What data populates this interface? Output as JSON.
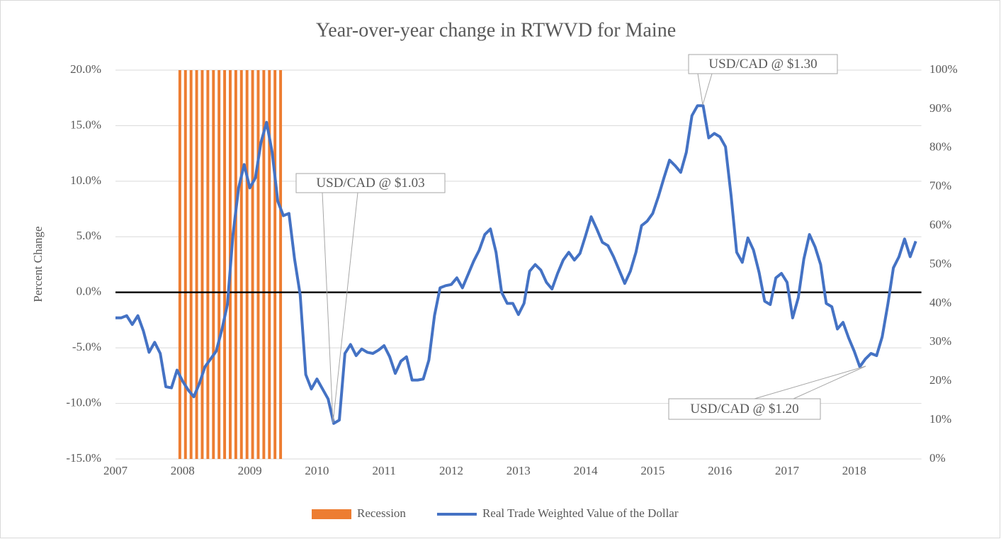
{
  "chart_data": {
    "type": "combo",
    "title": "Year-over-year change in RTWVD for Maine",
    "y_label": "Percent Change",
    "categories": [
      "2007",
      null,
      null,
      null,
      null,
      null,
      null,
      null,
      null,
      null,
      null,
      null,
      "2008",
      null,
      null,
      null,
      null,
      null,
      null,
      null,
      null,
      null,
      null,
      null,
      "2009",
      null,
      null,
      null,
      null,
      null,
      null,
      null,
      null,
      null,
      null,
      null,
      "2010",
      null,
      null,
      null,
      null,
      null,
      null,
      null,
      null,
      null,
      null,
      null,
      "2011",
      null,
      null,
      null,
      null,
      null,
      null,
      null,
      null,
      null,
      null,
      null,
      "2012",
      null,
      null,
      null,
      null,
      null,
      null,
      null,
      null,
      null,
      null,
      null,
      "2013",
      null,
      null,
      null,
      null,
      null,
      null,
      null,
      null,
      null,
      null,
      null,
      "2014",
      null,
      null,
      null,
      null,
      null,
      null,
      null,
      null,
      null,
      null,
      null,
      "2015",
      null,
      null,
      null,
      null,
      null,
      null,
      null,
      null,
      null,
      null,
      null,
      "2016",
      null,
      null,
      null,
      null,
      null,
      null,
      null,
      null,
      null,
      null,
      null,
      "2017",
      null,
      null,
      null,
      null,
      null,
      null,
      null,
      null,
      null,
      null,
      null,
      "2018",
      null,
      null,
      null,
      null,
      null,
      null,
      null,
      null,
      null,
      null,
      null
    ],
    "series": [
      {
        "name": "Recession",
        "type": "bar",
        "axis": "y2",
        "color": "#ed7d31",
        "values": [
          null,
          null,
          null,
          null,
          null,
          null,
          null,
          null,
          null,
          null,
          null,
          100,
          100,
          100,
          100,
          100,
          100,
          100,
          100,
          100,
          100,
          100,
          100,
          100,
          100,
          100,
          100,
          100,
          100,
          100,
          null,
          null,
          null,
          null,
          null,
          null,
          null,
          null,
          null,
          null,
          null,
          null,
          null,
          null,
          null,
          null,
          null,
          null,
          null,
          null,
          null,
          null,
          null,
          null,
          null,
          null,
          null,
          null,
          null,
          null,
          null,
          null,
          null,
          null,
          null,
          null,
          null,
          null,
          null,
          null,
          null,
          null,
          null,
          null,
          null,
          null,
          null,
          null,
          null,
          null,
          null,
          null,
          null,
          null,
          null,
          null,
          null,
          null,
          null,
          null,
          null,
          null,
          null,
          null,
          null,
          null,
          null,
          null,
          null,
          null,
          null,
          null,
          null,
          null,
          null,
          null,
          null,
          null,
          null,
          null,
          null,
          null,
          null,
          null,
          null,
          null,
          null,
          null,
          null,
          null,
          null,
          null,
          null,
          null,
          null,
          null,
          null,
          null,
          null,
          null,
          null,
          null,
          null,
          null,
          null,
          null,
          null,
          null,
          null,
          null,
          null,
          null,
          null,
          null
        ]
      },
      {
        "name": "Real Trade Weighted Value of the Dollar",
        "type": "line",
        "color": "#4472c4",
        "values": [
          -2.3,
          -2.3,
          -2.1,
          -2.9,
          -2.1,
          -3.5,
          -5.4,
          -4.5,
          -5.5,
          -8.5,
          -8.6,
          -7.0,
          -8.0,
          -8.8,
          -9.4,
          -8.2,
          -6.7,
          -6.0,
          -5.3,
          -3.4,
          -1.1,
          5.2,
          9.4,
          11.5,
          9.4,
          10.3,
          13.5,
          15.3,
          12.6,
          8.2,
          6.9,
          7.1,
          3.0,
          -0.2,
          -7.4,
          -8.7,
          -7.8,
          -8.7,
          -9.6,
          -11.8,
          -11.5,
          -5.5,
          -4.7,
          -5.7,
          -5.1,
          -5.4,
          -5.5,
          -5.2,
          -4.8,
          -5.8,
          -7.3,
          -6.2,
          -5.8,
          -7.9,
          -7.9,
          -7.8,
          -6.1,
          -2.1,
          0.4,
          0.6,
          0.7,
          1.3,
          0.4,
          1.6,
          2.8,
          3.8,
          5.2,
          5.7,
          3.6,
          0.0,
          -1.0,
          -1.0,
          -2.0,
          -1.0,
          1.9,
          2.5,
          2.0,
          0.9,
          0.3,
          1.7,
          2.9,
          3.6,
          2.9,
          3.5,
          5.1,
          6.8,
          5.7,
          4.5,
          4.2,
          3.2,
          2.0,
          0.8,
          1.9,
          3.6,
          6.0,
          6.4,
          7.1,
          8.6,
          10.3,
          11.9,
          11.4,
          10.8,
          12.6,
          15.9,
          16.8,
          16.8,
          13.9,
          14.3,
          14.0,
          13.1,
          8.7,
          3.6,
          2.7,
          4.9,
          3.8,
          1.8,
          -0.8,
          -1.1,
          1.3,
          1.7,
          0.9,
          -2.3,
          -0.5,
          3.0,
          5.2,
          4.1,
          2.5,
          -1.0,
          -1.3,
          -3.3,
          -2.7,
          -4.1,
          -5.3,
          -6.7,
          -6.0,
          -5.5,
          -5.7,
          -4.0,
          -1.1,
          2.2,
          3.2,
          4.8,
          3.2,
          4.6
        ]
      }
    ],
    "ylim": [
      -15,
      20
    ],
    "yticks": [
      {
        "value": -15,
        "label": "-15.0%"
      },
      {
        "value": -10,
        "label": "-10.0%"
      },
      {
        "value": -5,
        "label": "-5.0%"
      },
      {
        "value": 0,
        "label": "0.0%"
      },
      {
        "value": 5,
        "label": "5.0%"
      },
      {
        "value": 10,
        "label": "10.0%"
      },
      {
        "value": 15,
        "label": "15.0%"
      },
      {
        "value": 20,
        "label": "20.0%"
      }
    ],
    "y2lim": [
      0,
      100
    ],
    "y2ticks": [
      {
        "value": 0,
        "label": "0%"
      },
      {
        "value": 10,
        "label": "10%"
      },
      {
        "value": 20,
        "label": "20%"
      },
      {
        "value": 30,
        "label": "30%"
      },
      {
        "value": 40,
        "label": "40%"
      },
      {
        "value": 50,
        "label": "50%"
      },
      {
        "value": 60,
        "label": "60%"
      },
      {
        "value": 70,
        "label": "70%"
      },
      {
        "value": 80,
        "label": "80%"
      },
      {
        "value": 90,
        "label": "90%"
      },
      {
        "value": 100,
        "label": "100%"
      }
    ],
    "grid": true,
    "legend": "bottom",
    "annotations": [
      "USD/CAD @ $1.03",
      "USD/CAD @ $1.30",
      "USD/CAD @ $1.20"
    ]
  }
}
